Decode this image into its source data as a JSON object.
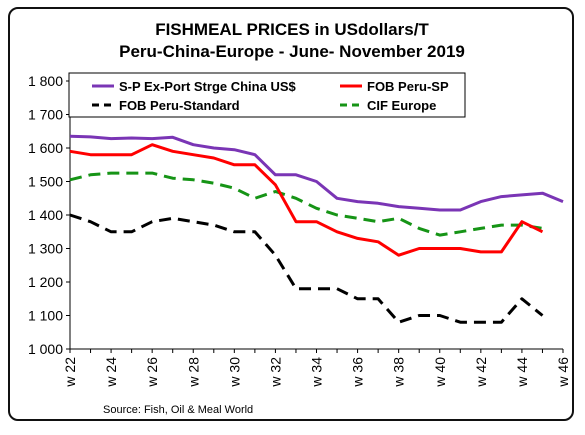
{
  "chart_data": {
    "type": "line",
    "title_line1": "FISHMEAL PRICES  in USdollars/T",
    "title_line2": "Peru-China-Europe - June- November 2019",
    "x": [
      22,
      23,
      24,
      25,
      26,
      27,
      28,
      29,
      30,
      31,
      32,
      33,
      34,
      35,
      36,
      37,
      38,
      39,
      40,
      41,
      42,
      43,
      44,
      45,
      46
    ],
    "x_tick_labels": [
      "w 22",
      "w 24",
      "w 26",
      "w 28",
      "w 30",
      "w 32",
      "w 34",
      "w 36",
      "w 38",
      "w 40",
      "w 42",
      "w 44",
      "w 46"
    ],
    "y_tick_labels": [
      "1 000",
      "1 100",
      "1 200",
      "1 300",
      "1 400",
      "1 500",
      "1 600",
      "1 700",
      "1 800"
    ],
    "ylim": [
      1000,
      1800
    ],
    "grid": false,
    "legend_position": "top",
    "source": "Source: Fish, Oil & Meal World",
    "series": [
      {
        "name": "S-P Ex-Port Strge China US$",
        "color": "#7a35b5",
        "dash": "solid",
        "values": [
          1635,
          1633,
          1628,
          1630,
          1628,
          1632,
          1610,
          1600,
          1595,
          1580,
          1520,
          1520,
          1500,
          1450,
          1440,
          1435,
          1425,
          1420,
          1415,
          1415,
          1440,
          1455,
          1460,
          1465,
          1440
        ]
      },
      {
        "name": "FOB Peru-SP",
        "color": "#ff0000",
        "dash": "solid",
        "values": [
          1590,
          1580,
          1580,
          1580,
          1610,
          1590,
          1580,
          1570,
          1550,
          1550,
          1490,
          1380,
          1380,
          1350,
          1330,
          1320,
          1280,
          1300,
          1300,
          1300,
          1290,
          1290,
          1380,
          1350,
          null
        ]
      },
      {
        "name": "FOB Peru-Standard",
        "color": "#000000",
        "dash": "long",
        "values": [
          1400,
          1380,
          1350,
          1350,
          1380,
          1390,
          1380,
          1370,
          1350,
          1350,
          1280,
          1180,
          1180,
          1180,
          1150,
          1150,
          1080,
          1100,
          1100,
          1080,
          1080,
          1080,
          1150,
          1100,
          null
        ]
      },
      {
        "name": "CIF Europe",
        "color": "#169416",
        "dash": "long",
        "values": [
          1505,
          1520,
          1525,
          1525,
          1525,
          1510,
          1505,
          1495,
          1480,
          1450,
          1470,
          1450,
          1420,
          1400,
          1390,
          1380,
          1390,
          1360,
          1340,
          1350,
          1360,
          1370,
          1370,
          1360,
          null
        ]
      }
    ]
  }
}
